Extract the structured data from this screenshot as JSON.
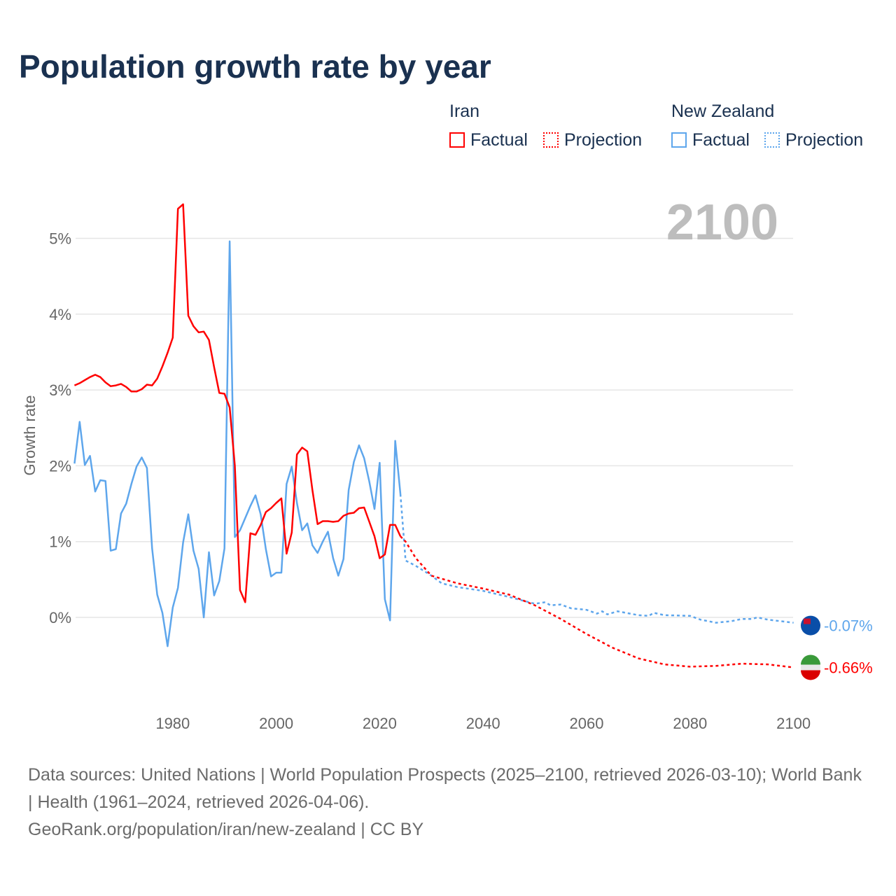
{
  "title": "Population growth rate by year",
  "legend": {
    "groups": [
      {
        "name": "Iran",
        "color": "#ff0000",
        "factual": "Factual",
        "projection": "Projection"
      },
      {
        "name": "New Zealand",
        "color": "#5ea6ec",
        "factual": "Factual",
        "projection": "Projection"
      }
    ]
  },
  "year_marker": "2100",
  "footer": {
    "sources": "Data sources: United Nations | World Population Prospects (2025–2100, retrieved 2026-03-10); World Bank | Health (1961–2024, retrieved 2026-04-06).",
    "link": "GeoRank.org/population/iran/new-zealand | CC BY"
  },
  "chart_data": {
    "type": "line",
    "title": "Population growth rate by year",
    "xlabel": "",
    "ylabel": "Growth rate",
    "xlim": [
      1961,
      2100
    ],
    "ylim": [
      -1,
      5.5
    ],
    "xticks": [
      {
        "v": 1980,
        "label": "1980"
      },
      {
        "v": 2000,
        "label": "2000"
      },
      {
        "v": 2020,
        "label": "2020"
      },
      {
        "v": 2040,
        "label": "2040"
      },
      {
        "v": 2060,
        "label": "2060"
      },
      {
        "v": 2080,
        "label": "2080"
      },
      {
        "v": 2100,
        "label": "2100"
      }
    ],
    "yticks": [
      {
        "v": 0,
        "label": "0%"
      },
      {
        "v": 1,
        "label": "1%"
      },
      {
        "v": 2,
        "label": "2%"
      },
      {
        "v": 3,
        "label": "3%"
      },
      {
        "v": 4,
        "label": "4%"
      },
      {
        "v": 5,
        "label": "5%"
      }
    ],
    "series": [
      {
        "name": "Iran",
        "color": "#ff0000",
        "end_label": "-0.66%",
        "factual_start": 1961,
        "factual": [
          3.06,
          3.09,
          3.13,
          3.17,
          3.2,
          3.17,
          3.1,
          3.05,
          3.06,
          3.08,
          3.04,
          2.98,
          2.98,
          3.01,
          3.07,
          3.06,
          3.15,
          3.31,
          3.49,
          3.69,
          5.39,
          5.45,
          3.98,
          3.84,
          3.76,
          3.77,
          3.66,
          3.3,
          2.96,
          2.95,
          2.77,
          2.0,
          0.36,
          0.2,
          1.11,
          1.09,
          1.22,
          1.39,
          1.44,
          1.51,
          1.57,
          0.84,
          1.12,
          2.15,
          2.24,
          2.19,
          1.68,
          1.23,
          1.27,
          1.27,
          1.26,
          1.27,
          1.34,
          1.37,
          1.38,
          1.44,
          1.45,
          1.26,
          1.07,
          0.78,
          0.83,
          1.22,
          1.22,
          1.07
        ],
        "projection": [
          [
            2024,
            1.07
          ],
          [
            2025,
            1.0
          ],
          [
            2027,
            0.78
          ],
          [
            2030,
            0.55
          ],
          [
            2035,
            0.45
          ],
          [
            2040,
            0.38
          ],
          [
            2045,
            0.3
          ],
          [
            2050,
            0.16
          ],
          [
            2055,
            -0.02
          ],
          [
            2060,
            -0.22
          ],
          [
            2065,
            -0.4
          ],
          [
            2070,
            -0.54
          ],
          [
            2075,
            -0.62
          ],
          [
            2080,
            -0.65
          ],
          [
            2085,
            -0.64
          ],
          [
            2090,
            -0.61
          ],
          [
            2095,
            -0.62
          ],
          [
            2100,
            -0.66
          ]
        ]
      },
      {
        "name": "New Zealand",
        "color": "#5ea6ec",
        "end_label": "-0.07%",
        "factual_start": 1961,
        "factual": [
          2.03,
          2.58,
          2.01,
          2.13,
          1.66,
          1.81,
          1.8,
          0.88,
          0.9,
          1.37,
          1.5,
          1.76,
          1.99,
          2.11,
          1.97,
          0.91,
          0.3,
          0.06,
          -0.38,
          0.13,
          0.39,
          0.99,
          1.36,
          0.88,
          0.64,
          0.0,
          0.86,
          0.29,
          0.48,
          0.91,
          4.96,
          1.06,
          1.15,
          1.31,
          1.47,
          1.61,
          1.36,
          0.9,
          0.54,
          0.59,
          0.59,
          1.76,
          1.99,
          1.51,
          1.15,
          1.24,
          0.95,
          0.85,
          1.0,
          1.13,
          0.78,
          0.55,
          0.77,
          1.68,
          2.05,
          2.27,
          2.1,
          1.79,
          1.43,
          2.04,
          0.24,
          -0.04,
          2.33,
          1.63
        ],
        "projection": [
          [
            2024,
            1.63
          ],
          [
            2025,
            0.75
          ],
          [
            2027,
            0.68
          ],
          [
            2030,
            0.55
          ],
          [
            2032,
            0.45
          ],
          [
            2035,
            0.4
          ],
          [
            2040,
            0.35
          ],
          [
            2045,
            0.27
          ],
          [
            2050,
            0.18
          ],
          [
            2052,
            0.2
          ],
          [
            2053,
            0.16
          ],
          [
            2055,
            0.17
          ],
          [
            2057,
            0.12
          ],
          [
            2060,
            0.1
          ],
          [
            2062,
            0.05
          ],
          [
            2063,
            0.08
          ],
          [
            2064,
            0.04
          ],
          [
            2066,
            0.08
          ],
          [
            2070,
            0.03
          ],
          [
            2072,
            0.02
          ],
          [
            2073,
            0.06
          ],
          [
            2075,
            0.03
          ],
          [
            2080,
            0.02
          ],
          [
            2082,
            -0.03
          ],
          [
            2085,
            -0.07
          ],
          [
            2088,
            -0.05
          ],
          [
            2090,
            -0.02
          ],
          [
            2092,
            -0.02
          ],
          [
            2093,
            0.0
          ],
          [
            2095,
            -0.03
          ],
          [
            2100,
            -0.07
          ]
        ]
      }
    ]
  }
}
